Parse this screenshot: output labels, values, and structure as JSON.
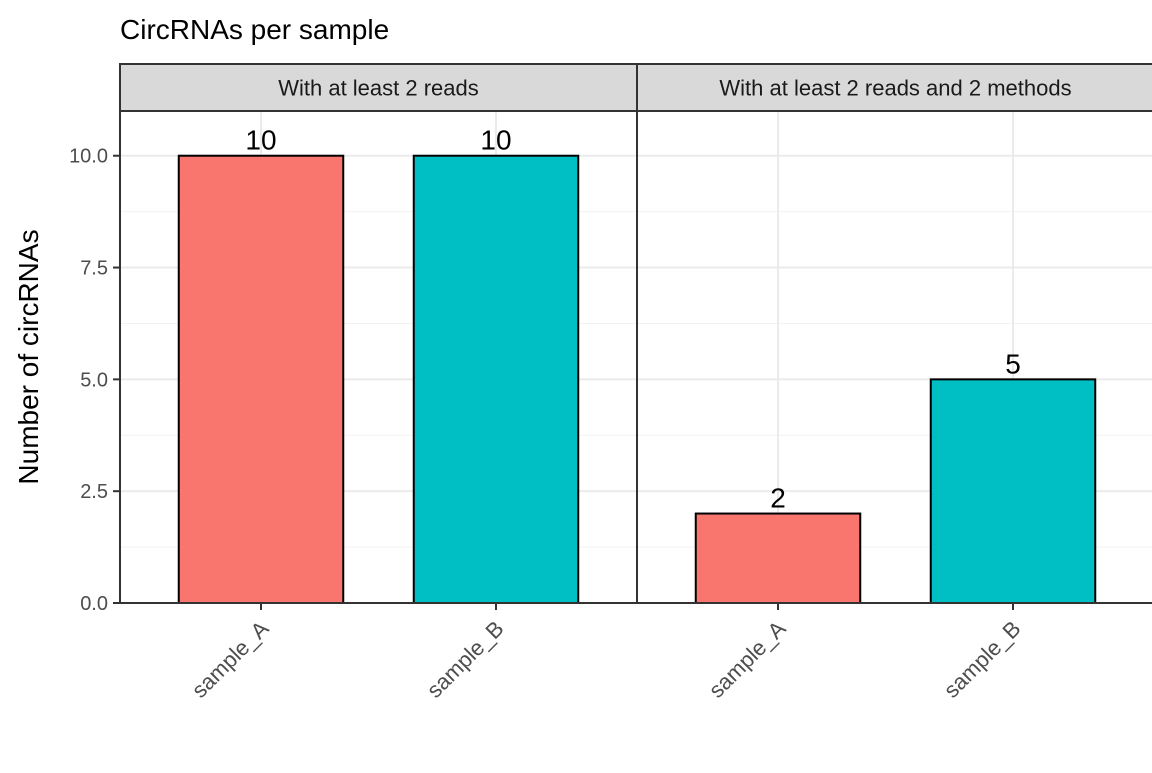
{
  "chart_data": {
    "type": "bar",
    "title": "CircRNAs per sample",
    "xlabel": "",
    "ylabel": "Number of circRNAs",
    "ylim": [
      0,
      11
    ],
    "y_ticks": [
      "0.0",
      "2.5",
      "5.0",
      "7.5",
      "10.0"
    ],
    "y_tick_values": [
      0,
      2.5,
      5,
      7.5,
      10
    ],
    "categories": [
      "sample_A",
      "sample_B"
    ],
    "bar_colors": [
      "#F8766D",
      "#00BFC4"
    ],
    "grid": true,
    "legend": "none",
    "panels": [
      {
        "strip": "With at least 2 reads",
        "values": [
          10,
          10
        ],
        "labels": [
          "10",
          "10"
        ]
      },
      {
        "strip": "With at least 2 reads and 2 methods",
        "values": [
          2,
          5
        ],
        "labels": [
          "2",
          "5"
        ]
      }
    ]
  }
}
